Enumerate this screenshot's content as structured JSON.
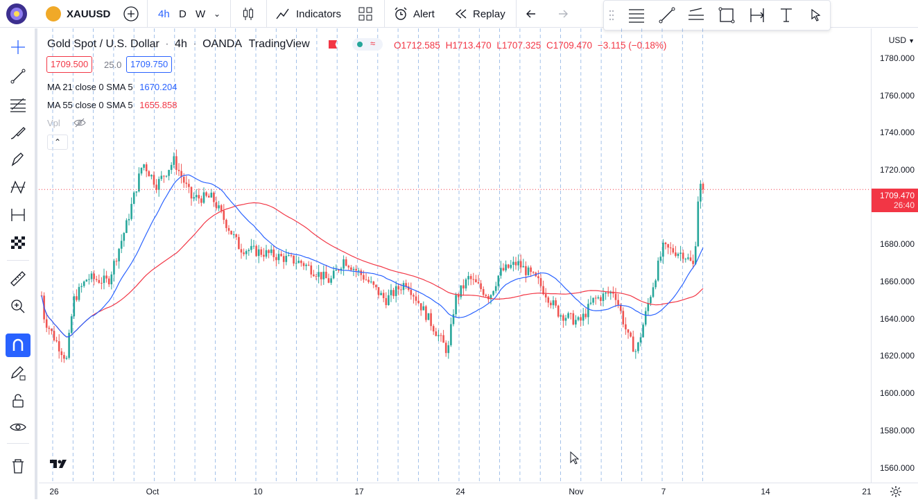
{
  "topbar": {
    "symbol": "XAUUSD",
    "intervals": [
      "4h",
      "D",
      "W"
    ],
    "indicators_label": "Indicators",
    "alert_label": "Alert",
    "replay_label": "Replay"
  },
  "legend": {
    "title": "Gold Spot / U.S. Dollar",
    "interval": "4h",
    "exchange": "OANDA",
    "source": "TradingView",
    "ohlc": {
      "o": "O1712.585",
      "h": "H1713.470",
      "l": "L1707.325",
      "c": "C1709.470",
      "chg": "−3.115 (−0.18%)"
    },
    "bid": "1709.500",
    "spread": "25.0",
    "ask": "1709.750",
    "ma1_label": "MA 21 close 0 SMA 5",
    "ma1_value": "1670.204",
    "ma2_label": "MA 55 close 0 SMA 5",
    "ma2_value": "1655.858",
    "vpl_label": "Vpl"
  },
  "price_axis": {
    "currency": "USD",
    "ticks": [
      "1780.000",
      "1760.000",
      "1740.000",
      "1720.000",
      "1700.000",
      "1680.000",
      "1660.000",
      "1640.000",
      "1620.000",
      "1600.000",
      "1580.000",
      "1560.000"
    ],
    "current_price": "1709.470",
    "countdown": "26:40"
  },
  "time_axis": {
    "ticks": [
      "26",
      "Oct",
      "10",
      "17",
      "24",
      "Nov",
      "7",
      "14",
      "21"
    ]
  },
  "colors": {
    "up": "#26a69a",
    "down": "#ef5350",
    "ma21": "#2962ff",
    "ma55": "#f23645",
    "accent": "#2962ff"
  },
  "chart_data": {
    "type": "candlestick",
    "symbol": "XAUUSD",
    "interval": "4h",
    "ylim": [
      1552,
      1796
    ],
    "current_price": 1709.47,
    "ma21_last": 1670.204,
    "ma55_last": 1655.858,
    "date_ticks": [
      "26",
      "Oct",
      "10",
      "17",
      "24",
      "Nov",
      "7",
      "14",
      "21"
    ]
  }
}
